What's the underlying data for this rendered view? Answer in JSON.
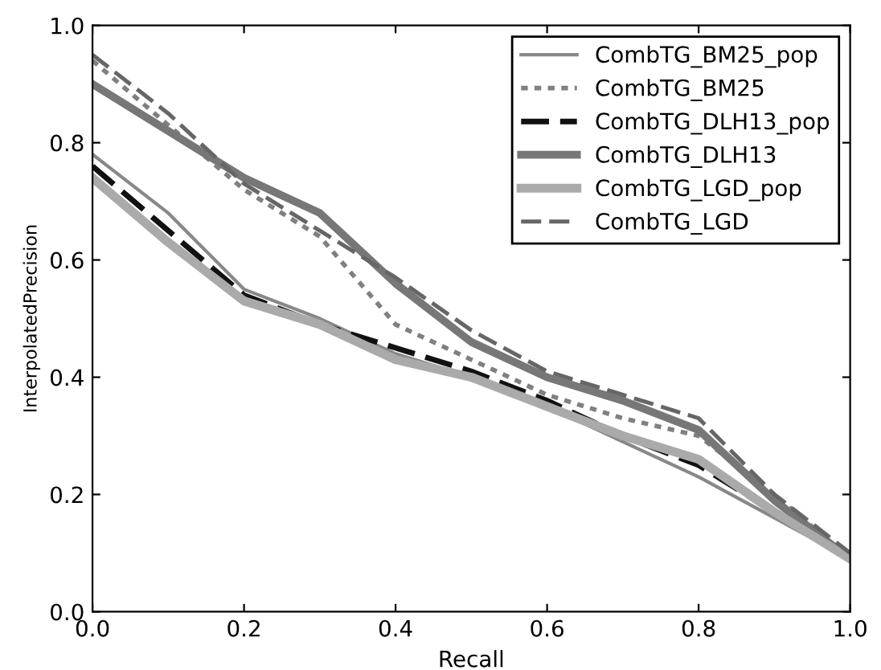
{
  "chart_data": {
    "type": "line",
    "xlabel": "Recall",
    "ylabel": "InterpolatedPrecision",
    "x": [
      0.0,
      0.1,
      0.2,
      0.3,
      0.4,
      0.5,
      0.6,
      0.7,
      0.8,
      0.9,
      1.0
    ],
    "xlim": [
      0.0,
      1.0
    ],
    "xticks": [
      {
        "value": 0.0,
        "label": "0.0"
      },
      {
        "value": 0.2,
        "label": "0.2"
      },
      {
        "value": 0.4,
        "label": "0.4"
      },
      {
        "value": 0.6,
        "label": "0.6"
      },
      {
        "value": 0.8,
        "label": "0.8"
      },
      {
        "value": 1.0,
        "label": "1.0"
      }
    ],
    "ylim": [
      0.0,
      1.0
    ],
    "yticks": [
      {
        "value": 0.0,
        "label": "0.0"
      },
      {
        "value": 0.2,
        "label": "0.2"
      },
      {
        "value": 0.4,
        "label": "0.4"
      },
      {
        "value": 0.6,
        "label": "0.6"
      },
      {
        "value": 0.8,
        "label": "0.8"
      },
      {
        "value": 1.0,
        "label": "1.0"
      }
    ],
    "grid": false,
    "legend": "top right",
    "series": [
      {
        "name": "CombTG_BM25_pop",
        "color": "#888888",
        "line_style": "solid",
        "values": [
          0.78,
          0.68,
          0.55,
          0.5,
          0.44,
          0.4,
          0.35,
          0.29,
          0.23,
          0.16,
          0.09
        ]
      },
      {
        "name": "CombTG_BM25",
        "color": "#808080",
        "line_style": "dotted",
        "values": [
          0.94,
          0.83,
          0.72,
          0.64,
          0.49,
          0.43,
          0.37,
          0.33,
          0.3,
          0.2,
          0.09
        ]
      },
      {
        "name": "CombTG_DLH13_pop",
        "color": "#111111",
        "line_style": "dashed",
        "values": [
          0.76,
          0.65,
          0.54,
          0.49,
          0.45,
          0.41,
          0.36,
          0.3,
          0.25,
          0.17,
          0.09
        ]
      },
      {
        "name": "CombTG_DLH13",
        "color": "#777777",
        "line_style": "solid",
        "values": [
          0.9,
          0.82,
          0.74,
          0.68,
          0.56,
          0.46,
          0.4,
          0.36,
          0.31,
          0.19,
          0.09
        ]
      },
      {
        "name": "CombTG_LGD_pop",
        "color": "#aaaaaa",
        "line_style": "solid",
        "values": [
          0.74,
          0.63,
          0.53,
          0.49,
          0.43,
          0.4,
          0.35,
          0.3,
          0.26,
          0.17,
          0.09
        ]
      },
      {
        "name": "CombTG_LGD",
        "color": "#666666",
        "line_style": "dashed",
        "values": [
          0.95,
          0.85,
          0.73,
          0.65,
          0.57,
          0.48,
          0.41,
          0.37,
          0.33,
          0.2,
          0.1
        ]
      }
    ]
  }
}
